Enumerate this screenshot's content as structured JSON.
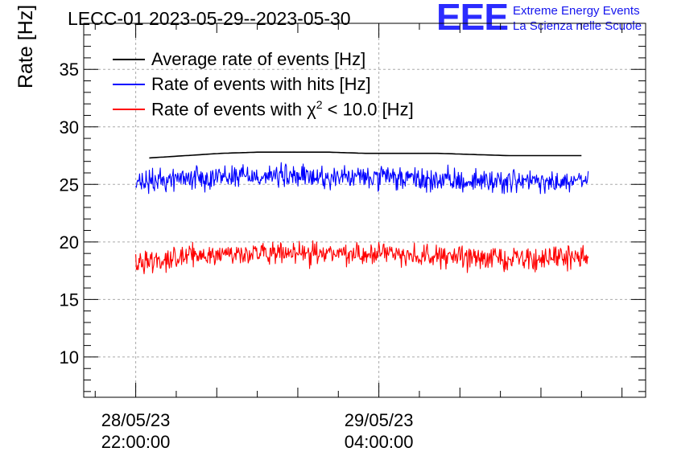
{
  "chart_data": {
    "type": "line",
    "title": "LECC-01 2023-05-29--2023-05-30",
    "ylabel": "Rate [Hz]",
    "xlabel": "",
    "ylim": [
      6.5,
      39
    ],
    "yticks": [
      10,
      15,
      20,
      25,
      30,
      35
    ],
    "xlim": [
      "2023-05-28 20:43:00",
      "2023-05-29 10:35:00"
    ],
    "xticks": [
      {
        "date": "28/05/23",
        "time": "22:00:00",
        "at": "2023-05-28 22:00:00"
      },
      {
        "date": "29/05/23",
        "time": "04:00:00",
        "at": "2023-05-29 04:00:00"
      }
    ],
    "grid": true,
    "legend_position": "top-left",
    "series": [
      {
        "name": "Average rate of events [Hz]",
        "color": "#000000",
        "style": "smooth",
        "x_start": "2023-05-28 22:20:00",
        "x_end": "2023-05-29 09:00:00",
        "values": [
          27.3,
          27.5,
          27.7,
          27.8,
          27.8,
          27.8,
          27.7,
          27.7,
          27.7,
          27.6,
          27.5,
          27.5,
          27.5
        ]
      },
      {
        "name": "Rate of events with hits [Hz]",
        "color": "#0000ff",
        "style": "noisy",
        "x_start": "2023-05-28 22:00:00",
        "x_end": "2023-05-29 09:10:00",
        "mean": [
          25.0,
          25.5,
          25.7,
          25.8,
          25.7,
          25.6,
          25.6,
          25.5,
          25.3,
          25.3,
          25.3,
          25.1,
          25.3
        ],
        "noise": 0.75
      },
      {
        "name": "Rate of events with χ² < 10.0 [Hz]",
        "color": "#ff0000",
        "style": "noisy",
        "x_start": "2023-05-28 22:00:00",
        "x_end": "2023-05-29 09:10:00",
        "mean": [
          18.3,
          18.6,
          18.9,
          19.0,
          18.9,
          19.0,
          19.0,
          19.0,
          18.7,
          18.6,
          18.6,
          18.5,
          18.8
        ],
        "noise": 0.7
      }
    ]
  },
  "logo": {
    "mark": "EEE",
    "line1": "Extreme Energy Events",
    "line2": "La Scienza nelle Scuole"
  },
  "legend": {
    "avg_label": "Average rate of events [Hz]",
    "hits_label": "Rate of events with hits [Hz]",
    "chi_label_prefix": "Rate of events with χ",
    "chi_label_sup": "2",
    "chi_label_suffix": " < 10.0 [Hz]"
  }
}
